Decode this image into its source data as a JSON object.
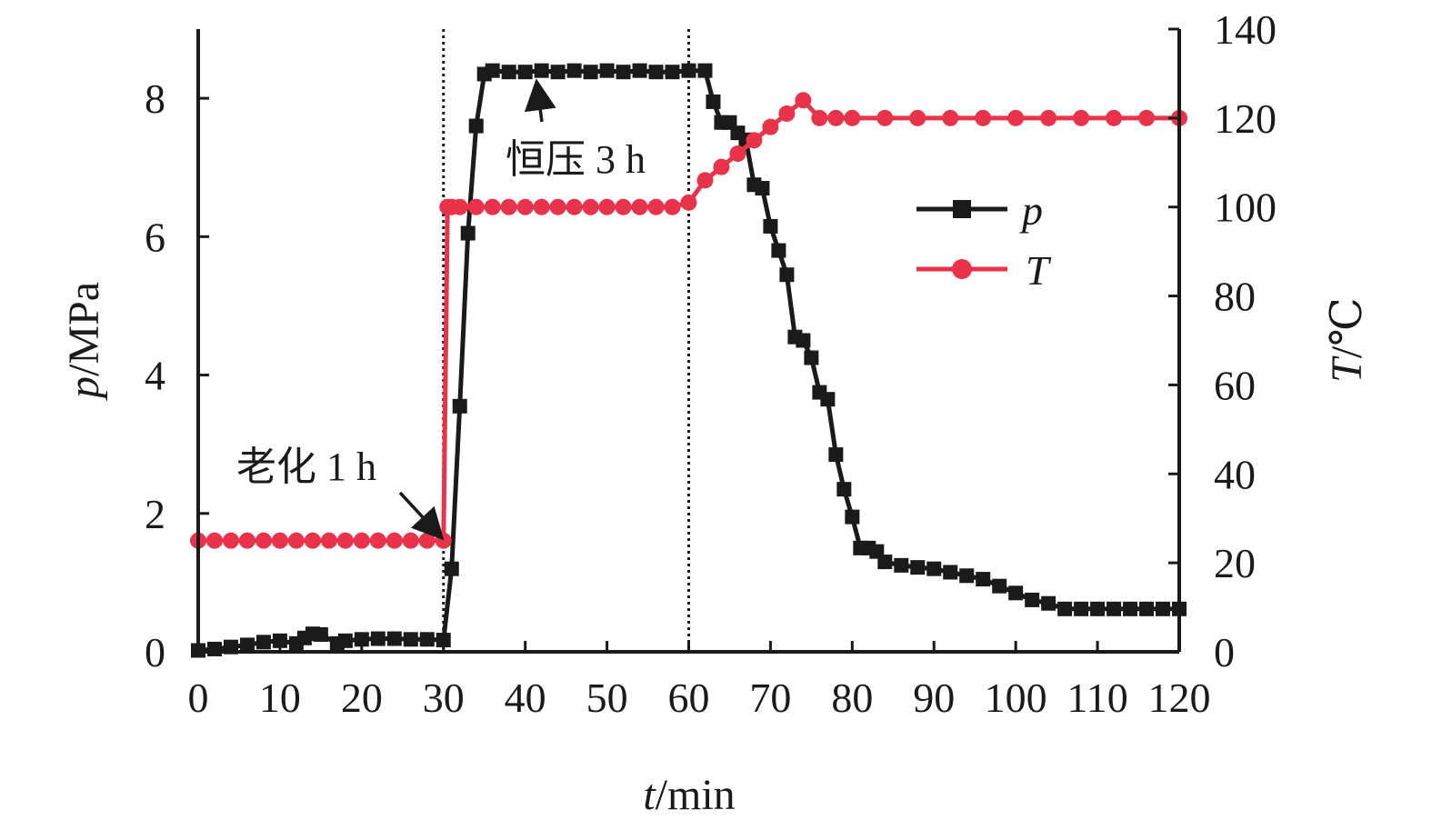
{
  "chart_data": {
    "type": "line",
    "xlabel": {
      "var": "t",
      "unit": "/min"
    },
    "ylabel_left": {
      "var": "p",
      "unit": "/MPa"
    },
    "ylabel_right": {
      "var": "T",
      "unit": "/℃"
    },
    "xlim": [
      0,
      120
    ],
    "ylim_left": [
      0,
      9
    ],
    "ylim_right": [
      0,
      140
    ],
    "x_ticks": [
      0,
      10,
      20,
      30,
      40,
      50,
      60,
      70,
      80,
      90,
      100,
      110,
      120
    ],
    "x_tick_labels": [
      "0",
      "10",
      "20",
      "30",
      "40",
      "50",
      "60",
      "70",
      "80",
      "90",
      "100",
      "110",
      "120"
    ],
    "y_left_ticks": [
      0,
      2,
      4,
      6,
      8
    ],
    "y_left_tick_labels": [
      "0",
      "2",
      "4",
      "6",
      "8"
    ],
    "y_right_ticks": [
      0,
      20,
      40,
      60,
      80,
      100,
      120,
      140
    ],
    "y_right_tick_labels": [
      "0",
      "20",
      "40",
      "60",
      "80",
      "100",
      "120",
      "140"
    ],
    "grid": false,
    "legend_position": "upper-right-inside",
    "vlines_x": [
      30,
      60
    ],
    "series": [
      {
        "name": "p",
        "axis": "left",
        "color": "#1a1a1a",
        "marker": "square",
        "x": [
          0,
          2,
          4,
          6,
          8,
          10,
          12,
          13,
          14,
          15,
          17,
          18,
          20,
          22,
          24,
          26,
          28,
          30,
          31,
          32,
          33,
          34,
          35,
          36,
          38,
          40,
          42,
          44,
          46,
          48,
          50,
          52,
          54,
          56,
          58,
          60,
          62,
          63,
          64,
          65,
          66,
          67,
          68,
          69,
          70,
          71,
          72,
          73,
          74,
          75,
          76,
          77,
          78,
          79,
          80,
          81,
          82,
          83,
          84,
          86,
          88,
          90,
          92,
          94,
          96,
          98,
          100,
          102,
          104,
          106,
          108,
          110,
          112,
          114,
          116,
          118,
          120
        ],
        "y": [
          0.02,
          0.04,
          0.07,
          0.1,
          0.14,
          0.16,
          0.12,
          0.2,
          0.26,
          0.25,
          0.12,
          0.16,
          0.18,
          0.19,
          0.19,
          0.18,
          0.18,
          0.17,
          1.2,
          3.55,
          6.05,
          7.6,
          8.35,
          8.4,
          8.38,
          8.38,
          8.4,
          8.38,
          8.4,
          8.38,
          8.4,
          8.38,
          8.4,
          8.38,
          8.38,
          8.4,
          8.4,
          7.95,
          7.65,
          7.65,
          7.5,
          7.4,
          6.75,
          6.7,
          6.15,
          5.8,
          5.45,
          4.55,
          4.5,
          4.25,
          3.75,
          3.65,
          2.85,
          2.35,
          1.95,
          1.5,
          1.5,
          1.45,
          1.3,
          1.25,
          1.22,
          1.2,
          1.15,
          1.1,
          1.05,
          0.95,
          0.85,
          0.75,
          0.7,
          0.62,
          0.62,
          0.62,
          0.62,
          0.62,
          0.62,
          0.62,
          0.62
        ]
      },
      {
        "name": "T",
        "axis": "right",
        "color": "#e8334a",
        "marker": "circle",
        "x": [
          0,
          2,
          4,
          6,
          8,
          10,
          12,
          14,
          16,
          18,
          20,
          22,
          24,
          26,
          28,
          30,
          30.5,
          31,
          32,
          34,
          36,
          38,
          40,
          42,
          44,
          46,
          48,
          50,
          52,
          54,
          56,
          58,
          60,
          62,
          64,
          66,
          68,
          70,
          72,
          74,
          76,
          78,
          80,
          84,
          88,
          92,
          96,
          100,
          104,
          108,
          112,
          116,
          120
        ],
        "y": [
          25,
          25,
          25,
          25,
          25,
          25,
          25,
          25,
          25,
          25,
          25,
          25,
          25,
          25,
          25,
          25,
          100,
          100,
          100,
          100,
          100,
          100,
          100,
          100,
          100,
          100,
          100,
          100,
          100,
          100,
          100,
          100,
          101,
          106,
          109,
          112,
          115,
          118,
          121,
          124,
          120,
          120,
          120,
          120,
          120,
          120,
          120,
          120,
          120,
          120,
          120,
          120,
          120
        ]
      }
    ],
    "annotations": [
      {
        "text": "老化 1 h",
        "x": 30,
        "y_left": 1.6
      },
      {
        "text": "恒压 3 h",
        "x": 41,
        "y_left": 8.38
      }
    ]
  }
}
